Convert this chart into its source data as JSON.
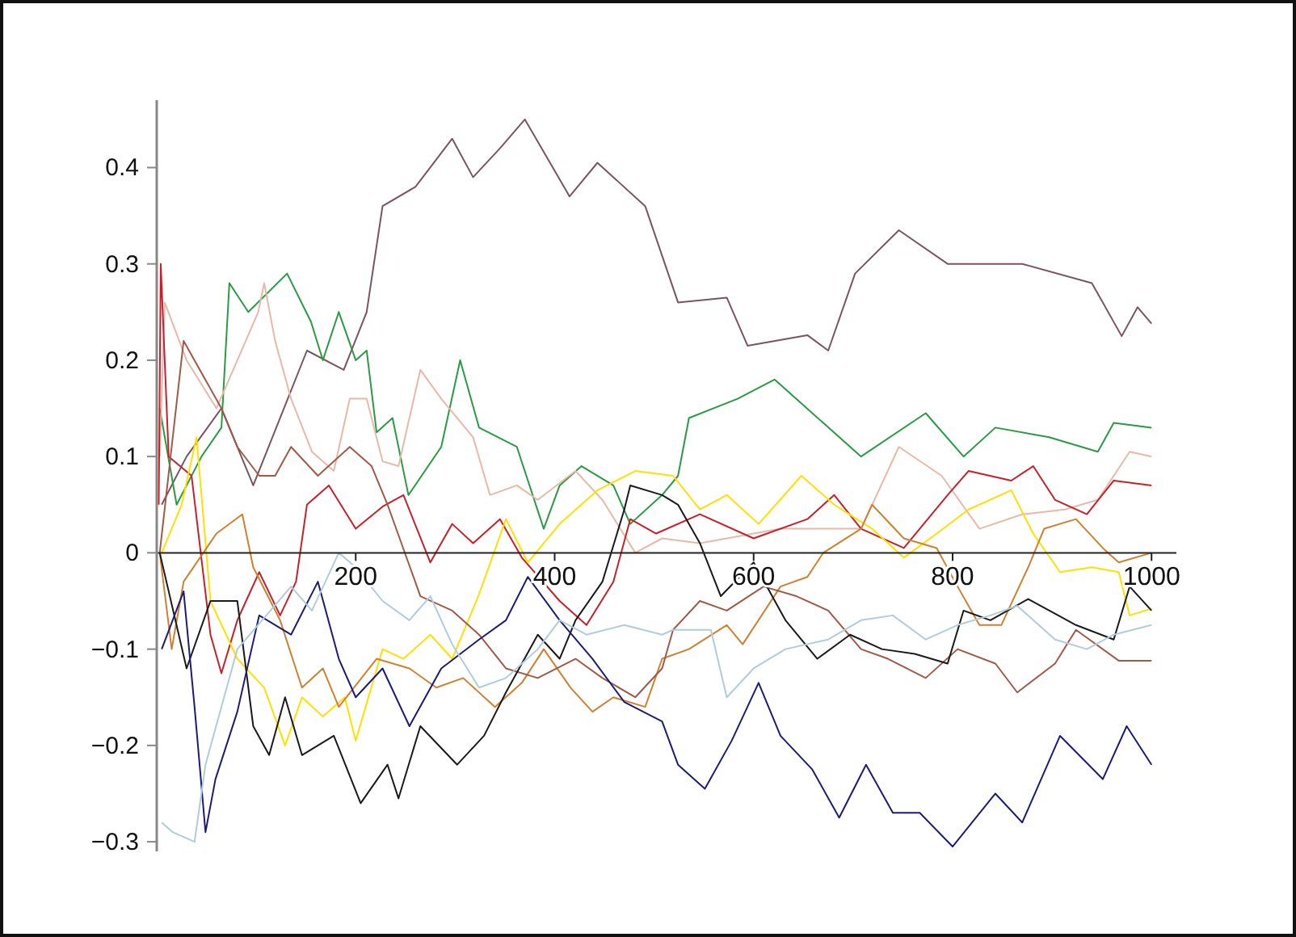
{
  "chart_data": {
    "type": "line",
    "xlim": [
      0,
      1025
    ],
    "ylim": [
      -0.31,
      0.47
    ],
    "xticks": [
      200,
      400,
      600,
      800,
      1000
    ],
    "yticks": [
      {
        "value": -0.3,
        "label": "−0.3"
      },
      {
        "value": -0.2,
        "label": "−0.2"
      },
      {
        "value": -0.1,
        "label": "−0.1"
      },
      0,
      0.1,
      0.2,
      0.3,
      0.4
    ],
    "grid": false,
    "line_style": "solid",
    "series": [
      {
        "color": "#7a5560",
        "x": [
          5,
          30,
          65,
          97,
          151,
          188,
          211,
          227,
          260,
          297,
          318,
          345,
          370,
          415,
          443,
          491,
          524,
          573,
          594,
          654,
          675,
          702,
          746,
          795,
          870,
          940,
          970,
          986,
          1000
        ],
        "values": [
          0.05,
          0.1,
          0.15,
          0.07,
          0.21,
          0.19,
          0.25,
          0.36,
          0.38,
          0.43,
          0.39,
          0.42,
          0.45,
          0.37,
          0.405,
          0.36,
          0.26,
          0.265,
          0.215,
          0.226,
          0.21,
          0.29,
          0.335,
          0.3,
          0.3,
          0.28,
          0.225,
          0.255,
          0.238
        ]
      },
      {
        "color": "#2a9a45",
        "x": [
          3,
          20,
          45,
          65,
          73,
          92,
          131,
          155,
          167,
          183,
          200,
          211,
          221,
          237,
          253,
          286,
          305,
          324,
          362,
          389,
          405,
          427,
          459,
          476,
          508,
          524,
          535,
          584,
          621,
          659,
          708,
          773,
          811,
          843,
          897,
          946,
          962,
          1000
        ],
        "values": [
          0.15,
          0.05,
          0.1,
          0.13,
          0.28,
          0.25,
          0.29,
          0.24,
          0.2,
          0.25,
          0.2,
          0.21,
          0.125,
          0.14,
          0.06,
          0.11,
          0.2,
          0.13,
          0.11,
          0.025,
          0.07,
          0.09,
          0.07,
          0.03,
          0.06,
          0.08,
          0.14,
          0.16,
          0.18,
          0.145,
          0.1,
          0.145,
          0.1,
          0.13,
          0.12,
          0.105,
          0.135,
          0.13
        ]
      },
      {
        "color": "#e8b8a8",
        "x": [
          3,
          8,
          30,
          60,
          102,
          108,
          119,
          135,
          156,
          178,
          194,
          211,
          227,
          243,
          265,
          286,
          318,
          335,
          362,
          383,
          421,
          448,
          481,
          508,
          546,
          627,
          708,
          746,
          789,
          827,
          870,
          913,
          946,
          978,
          1000
        ],
        "values": [
          0.1,
          0.26,
          0.2,
          0.15,
          0.25,
          0.28,
          0.22,
          0.16,
          0.105,
          0.085,
          0.16,
          0.16,
          0.095,
          0.09,
          0.19,
          0.16,
          0.12,
          0.06,
          0.07,
          0.055,
          0.085,
          0.055,
          0.0,
          0.015,
          0.01,
          0.025,
          0.025,
          0.11,
          0.08,
          0.025,
          0.04,
          0.045,
          0.055,
          0.105,
          0.1
        ]
      },
      {
        "color": "#c8202a",
        "x": [
          2,
          4,
          12,
          35,
          54,
          65,
          81,
          103,
          124,
          140,
          151,
          173,
          200,
          227,
          248,
          275,
          297,
          318,
          345,
          367,
          405,
          432,
          459,
          476,
          502,
          546,
          600,
          654,
          681,
          708,
          751,
          795,
          816,
          859,
          881,
          903,
          935,
          962,
          1000
        ],
        "values": [
          0.05,
          0.3,
          0.1,
          0.08,
          -0.085,
          -0.125,
          -0.07,
          -0.02,
          -0.065,
          -0.03,
          0.05,
          0.07,
          0.025,
          0.048,
          0.06,
          -0.01,
          0.03,
          0.01,
          0.035,
          -0.005,
          -0.05,
          -0.075,
          -0.03,
          0.035,
          0.02,
          0.04,
          0.015,
          0.035,
          0.06,
          0.025,
          0.005,
          0.06,
          0.085,
          0.075,
          0.09,
          0.055,
          0.04,
          0.075,
          0.07
        ]
      },
      {
        "color": "#ffe000",
        "x": [
          5,
          25,
          40,
          54,
          81,
          108,
          129,
          146,
          167,
          189,
          200,
          227,
          248,
          275,
          297,
          324,
          351,
          373,
          405,
          443,
          481,
          519,
          546,
          573,
          605,
          648,
          681,
          719,
          751,
          784,
          816,
          859,
          881,
          908,
          940,
          967,
          978,
          1000
        ],
        "values": [
          0.0,
          0.05,
          0.12,
          -0.05,
          -0.11,
          -0.14,
          -0.2,
          -0.15,
          -0.17,
          -0.15,
          -0.195,
          -0.1,
          -0.11,
          -0.085,
          -0.11,
          -0.043,
          0.035,
          -0.01,
          0.03,
          0.065,
          0.085,
          0.08,
          0.045,
          0.06,
          0.03,
          0.08,
          0.05,
          0.025,
          -0.005,
          0.02,
          0.045,
          0.065,
          0.02,
          -0.02,
          -0.015,
          -0.02,
          -0.065,
          -0.058
        ]
      },
      {
        "color": "#d08030",
        "x": [
          3,
          15,
          27,
          60,
          86,
          97,
          124,
          146,
          167,
          183,
          221,
          254,
          281,
          308,
          340,
          367,
          389,
          416,
          438,
          459,
          491,
          508,
          535,
          573,
          589,
          627,
          654,
          670,
          708,
          719,
          751,
          784,
          805,
          827,
          849,
          876,
          892,
          924,
          951,
          967,
          1000
        ],
        "values": [
          0.0,
          -0.1,
          -0.03,
          0.02,
          0.04,
          -0.015,
          -0.07,
          -0.14,
          -0.12,
          -0.16,
          -0.11,
          -0.12,
          -0.14,
          -0.13,
          -0.16,
          -0.135,
          -0.1,
          -0.14,
          -0.165,
          -0.15,
          -0.16,
          -0.11,
          -0.1,
          -0.075,
          -0.095,
          -0.035,
          -0.025,
          0.0,
          0.025,
          0.05,
          0.015,
          0.005,
          -0.035,
          -0.075,
          -0.075,
          -0.015,
          0.025,
          0.035,
          0.005,
          -0.01,
          0.0
        ]
      },
      {
        "color": "#a05a48",
        "x": [
          3,
          27,
          65,
          81,
          103,
          119,
          135,
          162,
          194,
          216,
          232,
          265,
          297,
          324,
          351,
          383,
          421,
          448,
          481,
          508,
          519,
          546,
          573,
          610,
          643,
          675,
          708,
          735,
          773,
          805,
          843,
          865,
          903,
          924,
          967,
          1000
        ],
        "values": [
          0.0,
          0.22,
          0.15,
          0.11,
          0.08,
          0.08,
          0.11,
          0.08,
          0.11,
          0.09,
          0.05,
          -0.045,
          -0.06,
          -0.085,
          -0.12,
          -0.13,
          -0.11,
          -0.13,
          -0.15,
          -0.12,
          -0.08,
          -0.05,
          -0.06,
          -0.035,
          -0.045,
          -0.06,
          -0.1,
          -0.11,
          -0.13,
          -0.1,
          -0.115,
          -0.145,
          -0.115,
          -0.08,
          -0.112,
          -0.112
        ]
      },
      {
        "color": "#1a1a1a",
        "x": [
          3,
          30,
          54,
          81,
          97,
          113,
          129,
          146,
          178,
          205,
          232,
          243,
          265,
          302,
          329,
          351,
          383,
          405,
          421,
          448,
          470,
          476,
          508,
          524,
          546,
          567,
          600,
          632,
          664,
          697,
          729,
          762,
          795,
          811,
          838,
          876,
          924,
          962,
          978,
          1000
        ],
        "values": [
          0.0,
          -0.12,
          -0.05,
          -0.05,
          -0.18,
          -0.21,
          -0.15,
          -0.21,
          -0.19,
          -0.26,
          -0.22,
          -0.255,
          -0.18,
          -0.22,
          -0.19,
          -0.145,
          -0.085,
          -0.11,
          -0.07,
          -0.03,
          0.045,
          0.07,
          0.06,
          0.05,
          0.01,
          -0.045,
          -0.01,
          -0.07,
          -0.11,
          -0.085,
          -0.1,
          -0.105,
          -0.115,
          -0.06,
          -0.07,
          -0.048,
          -0.075,
          -0.09,
          -0.035,
          -0.06
        ]
      },
      {
        "color": "#1c1c78",
        "x": [
          5,
          27,
          38,
          49,
          59,
          81,
          103,
          135,
          162,
          183,
          200,
          227,
          254,
          286,
          324,
          351,
          373,
          405,
          438,
          470,
          508,
          524,
          551,
          578,
          605,
          627,
          659,
          686,
          713,
          740,
          767,
          800,
          843,
          870,
          908,
          951,
          975,
          1000
        ],
        "values": [
          -0.1,
          -0.04,
          -0.16,
          -0.29,
          -0.235,
          -0.165,
          -0.065,
          -0.085,
          -0.03,
          -0.11,
          -0.15,
          -0.12,
          -0.18,
          -0.12,
          -0.09,
          -0.07,
          -0.025,
          -0.07,
          -0.11,
          -0.155,
          -0.175,
          -0.22,
          -0.245,
          -0.195,
          -0.135,
          -0.19,
          -0.225,
          -0.275,
          -0.22,
          -0.27,
          -0.27,
          -0.305,
          -0.25,
          -0.28,
          -0.19,
          -0.235,
          -0.18,
          -0.22
        ]
      },
      {
        "color": "#b0ccdc",
        "x": [
          5,
          16,
          38,
          49,
          65,
          81,
          135,
          156,
          183,
          200,
          227,
          254,
          275,
          297,
          324,
          351,
          383,
          405,
          432,
          470,
          508,
          519,
          557,
          573,
          600,
          632,
          675,
          708,
          740,
          773,
          805,
          838,
          865,
          903,
          935,
          962,
          1000
        ],
        "values": [
          -0.28,
          -0.29,
          -0.3,
          -0.22,
          -0.16,
          -0.1,
          -0.035,
          -0.06,
          0.0,
          -0.015,
          -0.05,
          -0.07,
          -0.045,
          -0.095,
          -0.14,
          -0.13,
          -0.1,
          -0.07,
          -0.085,
          -0.075,
          -0.085,
          -0.08,
          -0.08,
          -0.15,
          -0.12,
          -0.1,
          -0.09,
          -0.07,
          -0.065,
          -0.09,
          -0.075,
          -0.065,
          -0.055,
          -0.09,
          -0.1,
          -0.085,
          -0.075
        ]
      }
    ]
  }
}
